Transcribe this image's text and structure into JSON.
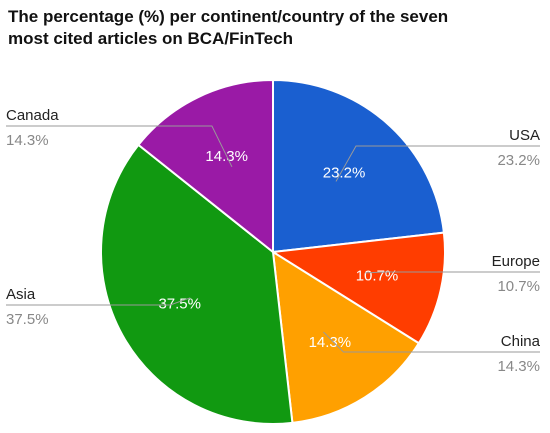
{
  "chart_data": {
    "type": "pie",
    "title": "The percentage (%) per continent/country of the seven most cited articles on BCA/FinTech",
    "slices": [
      {
        "label": "USA",
        "value": 23.2,
        "display": "23.2%",
        "color": "#1a5fd0"
      },
      {
        "label": "Europe",
        "value": 10.7,
        "display": "10.7%",
        "color": "#ff3d00"
      },
      {
        "label": "China",
        "value": 14.3,
        "display": "14.3%",
        "color": "#ffa000"
      },
      {
        "label": "Asia",
        "value": 37.5,
        "display": "37.5%",
        "color": "#119911"
      },
      {
        "label": "Canada",
        "value": 14.3,
        "display": "14.3%",
        "color": "#9a1aa6"
      }
    ],
    "legend": "none",
    "labels": "outside with leader lines"
  }
}
